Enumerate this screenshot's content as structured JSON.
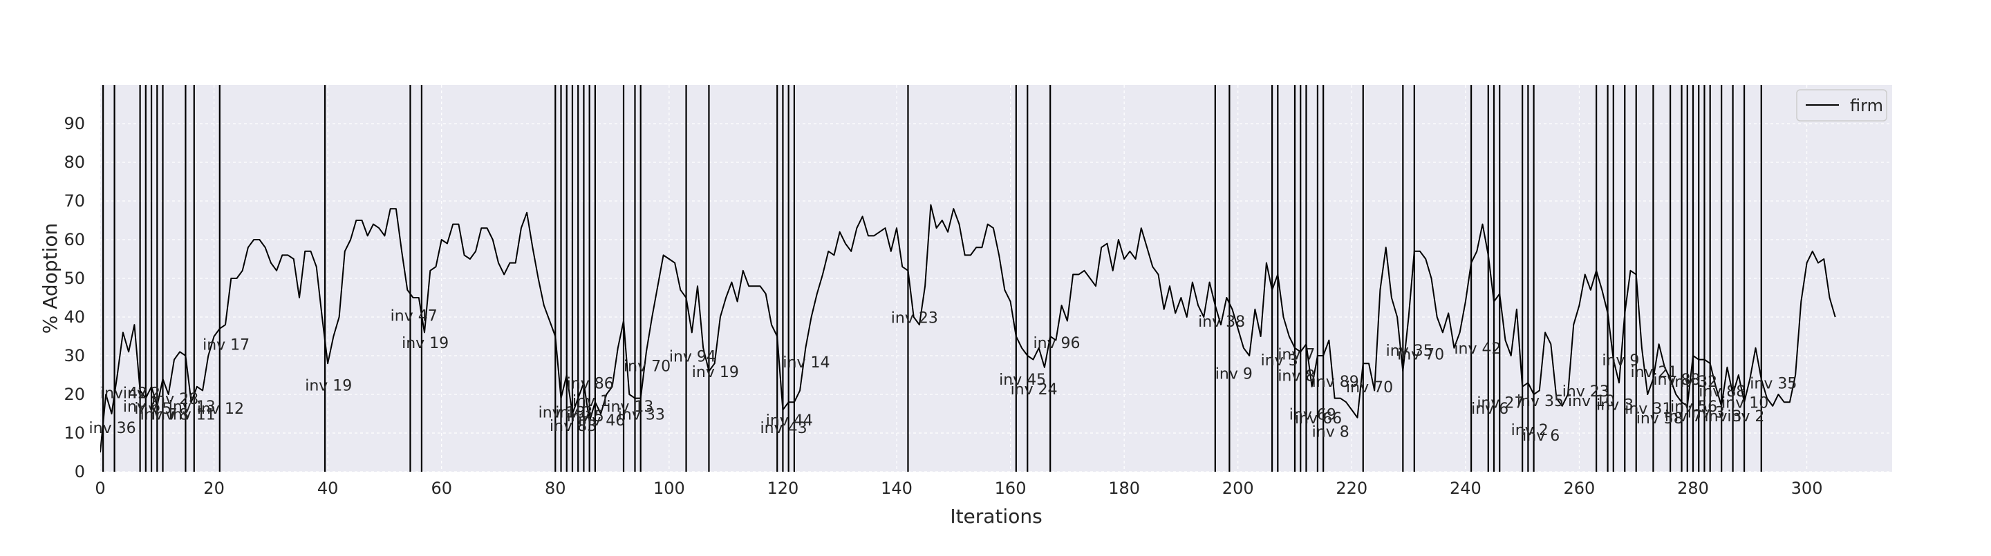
{
  "chart_data": {
    "type": "line",
    "xlabel": "Iterations",
    "ylabel": "% Adoption",
    "xlim": [
      0,
      315
    ],
    "ylim": [
      0,
      100
    ],
    "xticks": [
      0,
      20,
      40,
      60,
      80,
      100,
      120,
      140,
      160,
      180,
      200,
      220,
      240,
      260,
      280,
      300
    ],
    "yticks": [
      0,
      10,
      20,
      30,
      40,
      50,
      60,
      70,
      80,
      90
    ],
    "grid": true,
    "legend_position": "top-right",
    "series": [
      {
        "name": "firm",
        "color": "#000000",
        "x_start": 0,
        "values": [
          5,
          20,
          15,
          25,
          36,
          31,
          38,
          21,
          19,
          22,
          17,
          24,
          20,
          29,
          31,
          30,
          18,
          22,
          21,
          30,
          35,
          37,
          38,
          50,
          50,
          52,
          58,
          60,
          60,
          58,
          54,
          52,
          56,
          56,
          55,
          45,
          57,
          57,
          53,
          40,
          28,
          35,
          40,
          57,
          60,
          65,
          65,
          61,
          64,
          63,
          61,
          68,
          68,
          57,
          47,
          45,
          45,
          36,
          52,
          53,
          60,
          59,
          64,
          64,
          56,
          55,
          57,
          63,
          63,
          60,
          54,
          51,
          54,
          54,
          63,
          67,
          58,
          50,
          43,
          39,
          35,
          19,
          25,
          15,
          19,
          23,
          13,
          18,
          15,
          20,
          22,
          32,
          39,
          20,
          19,
          19,
          31,
          40,
          48,
          56,
          55,
          54,
          47,
          45,
          36,
          48,
          32,
          26,
          28,
          40,
          45,
          49,
          44,
          52,
          48,
          48,
          48,
          46,
          38,
          35,
          16,
          18,
          18,
          21,
          32,
          40,
          46,
          51,
          57,
          56,
          62,
          59,
          57,
          63,
          66,
          61,
          61,
          62,
          63,
          57,
          63,
          53,
          52,
          40,
          38,
          48,
          69,
          63,
          65,
          62,
          68,
          64,
          56,
          56,
          58,
          58,
          64,
          63,
          56,
          47,
          44,
          35,
          32,
          30,
          29,
          32,
          27,
          35,
          34,
          43,
          39,
          51,
          51,
          52,
          50,
          48,
          58,
          59,
          52,
          60,
          55,
          57,
          55,
          63,
          58,
          53,
          51,
          42,
          48,
          41,
          45,
          40,
          49,
          43,
          40,
          49,
          43,
          38,
          45,
          42,
          37,
          32,
          30,
          42,
          35,
          54,
          47,
          51,
          40,
          35,
          32,
          31,
          33,
          22,
          30,
          30,
          34,
          19,
          19,
          18,
          16,
          14,
          28,
          28,
          21,
          47,
          58,
          45,
          40,
          26,
          40,
          57,
          57,
          55,
          50,
          40,
          36,
          41,
          32,
          36,
          44,
          54,
          57,
          64,
          56,
          44,
          46,
          34,
          30,
          42,
          22,
          23,
          20,
          21,
          36,
          33,
          19,
          17,
          20,
          38,
          43,
          51,
          47,
          52,
          47,
          41,
          29,
          23,
          41,
          52,
          51,
          32,
          20,
          24,
          33,
          27,
          24,
          20,
          18,
          17,
          30,
          29,
          29,
          28,
          22,
          17,
          27,
          20,
          25,
          18,
          24,
          32,
          24,
          19,
          17,
          20,
          18,
          18,
          25,
          44,
          54,
          57,
          54,
          55,
          45,
          40
        ]
      }
    ],
    "vertical_lines": [
      0.5,
      2.5,
      7,
      8,
      9,
      10,
      11,
      15,
      16.5,
      21,
      39.5,
      54.5,
      56.5,
      80,
      81,
      82,
      83,
      84,
      85,
      86,
      87,
      92,
      94,
      95,
      103,
      107,
      119,
      120,
      121,
      122,
      142,
      161,
      163,
      167,
      196,
      198.5,
      206,
      207,
      210,
      211,
      212,
      214,
      215,
      222,
      229,
      231,
      241,
      244,
      245,
      246,
      250,
      251,
      252,
      263,
      265,
      266,
      268,
      270,
      273,
      276,
      278,
      279,
      280,
      281,
      282,
      283,
      285,
      287,
      289,
      292
    ],
    "annotations": [
      {
        "text": "inv 36",
        "x": -2,
        "y": 10
      },
      {
        "text": "inv 42",
        "x": 0,
        "y": 19
      },
      {
        "text": "inv 2",
        "x": 4,
        "y": 19
      },
      {
        "text": "inv 6",
        "x": 4,
        "y": 15.5
      },
      {
        "text": "inv 28",
        "x": 9,
        "y": 17.5
      },
      {
        "text": "inv 5",
        "x": 6,
        "y": 15
      },
      {
        "text": "inv 7",
        "x": 7,
        "y": 13.5
      },
      {
        "text": "inv 8",
        "x": 9,
        "y": 13.5
      },
      {
        "text": "inv 11",
        "x": 12,
        "y": 13.5
      },
      {
        "text": "inv 13",
        "x": 12,
        "y": 15.5
      },
      {
        "text": "inv 12",
        "x": 17,
        "y": 15
      },
      {
        "text": "inv 17",
        "x": 18,
        "y": 31.5
      },
      {
        "text": "inv 19",
        "x": 36,
        "y": 21
      },
      {
        "text": "inv 47",
        "x": 51,
        "y": 39
      },
      {
        "text": "inv 19",
        "x": 53,
        "y": 32
      },
      {
        "text": "inv 86",
        "x": 82,
        "y": 21.5
      },
      {
        "text": "inv 1",
        "x": 83,
        "y": 17
      },
      {
        "text": "inv 18",
        "x": 77,
        "y": 14
      },
      {
        "text": "inv 3",
        "x": 80,
        "y": 14
      },
      {
        "text": "inv 5",
        "x": 82,
        "y": 13
      },
      {
        "text": "inv 83",
        "x": 79,
        "y": 10.5
      },
      {
        "text": "inv 46",
        "x": 84,
        "y": 12
      },
      {
        "text": "inv 13",
        "x": 89,
        "y": 15.5
      },
      {
        "text": "inv 33",
        "x": 91,
        "y": 13.5
      },
      {
        "text": "inv 70",
        "x": 92,
        "y": 26
      },
      {
        "text": "inv 94",
        "x": 100,
        "y": 28.5
      },
      {
        "text": "inv 19",
        "x": 104,
        "y": 24.5
      },
      {
        "text": "inv 14",
        "x": 120,
        "y": 27
      },
      {
        "text": "inv 44",
        "x": 117,
        "y": 12
      },
      {
        "text": "inv 43",
        "x": 116,
        "y": 10
      },
      {
        "text": "inv 23",
        "x": 139,
        "y": 38.5
      },
      {
        "text": "inv 45",
        "x": 158,
        "y": 22.5
      },
      {
        "text": "inv 24",
        "x": 160,
        "y": 20
      },
      {
        "text": "inv 96",
        "x": 164,
        "y": 32
      },
      {
        "text": "inv 38",
        "x": 193,
        "y": 37.5
      },
      {
        "text": "inv 9",
        "x": 196,
        "y": 24
      },
      {
        "text": "inv 7",
        "x": 207,
        "y": 29
      },
      {
        "text": "inv 3",
        "x": 204,
        "y": 27.5
      },
      {
        "text": "inv 8",
        "x": 207,
        "y": 23.5
      },
      {
        "text": "inv 89",
        "x": 213,
        "y": 22
      },
      {
        "text": "inv 70",
        "x": 219,
        "y": 20.5
      },
      {
        "text": "inv 69",
        "x": 209,
        "y": 13.5
      },
      {
        "text": "inv 66",
        "x": 210,
        "y": 12.5
      },
      {
        "text": "inv 8",
        "x": 213,
        "y": 9
      },
      {
        "text": "inv 35",
        "x": 226,
        "y": 30
      },
      {
        "text": "inv 70",
        "x": 228,
        "y": 29
      },
      {
        "text": "inv 42",
        "x": 238,
        "y": 30.5
      },
      {
        "text": "inv 27",
        "x": 242,
        "y": 16.5
      },
      {
        "text": "inv 6",
        "x": 241,
        "y": 15
      },
      {
        "text": "inv 35",
        "x": 249,
        "y": 17
      },
      {
        "text": "inv 2",
        "x": 248,
        "y": 9.5
      },
      {
        "text": "inv 6",
        "x": 250,
        "y": 8
      },
      {
        "text": "inv 23",
        "x": 257,
        "y": 19.5
      },
      {
        "text": "inv 10",
        "x": 258,
        "y": 17
      },
      {
        "text": "inv 3",
        "x": 263,
        "y": 16
      },
      {
        "text": "inv 9",
        "x": 264,
        "y": 27.5
      },
      {
        "text": "inv 21",
        "x": 269,
        "y": 24.5
      },
      {
        "text": "inv 31",
        "x": 268,
        "y": 15
      },
      {
        "text": "inv 58",
        "x": 270,
        "y": 12.5
      },
      {
        "text": "inv 88",
        "x": 273,
        "y": 22.5
      },
      {
        "text": "inv 32",
        "x": 276,
        "y": 22
      },
      {
        "text": "inv 88",
        "x": 281,
        "y": 19.5
      },
      {
        "text": "inv 56",
        "x": 276,
        "y": 15.5
      },
      {
        "text": "inv 3",
        "x": 279,
        "y": 14
      },
      {
        "text": "inv 7",
        "x": 275,
        "y": 13
      },
      {
        "text": "inv 10",
        "x": 285,
        "y": 16.5
      },
      {
        "text": "inv 3",
        "x": 282,
        "y": 13
      },
      {
        "text": "inv 2",
        "x": 286,
        "y": 13
      },
      {
        "text": "inv 35",
        "x": 290,
        "y": 21.5
      }
    ]
  }
}
